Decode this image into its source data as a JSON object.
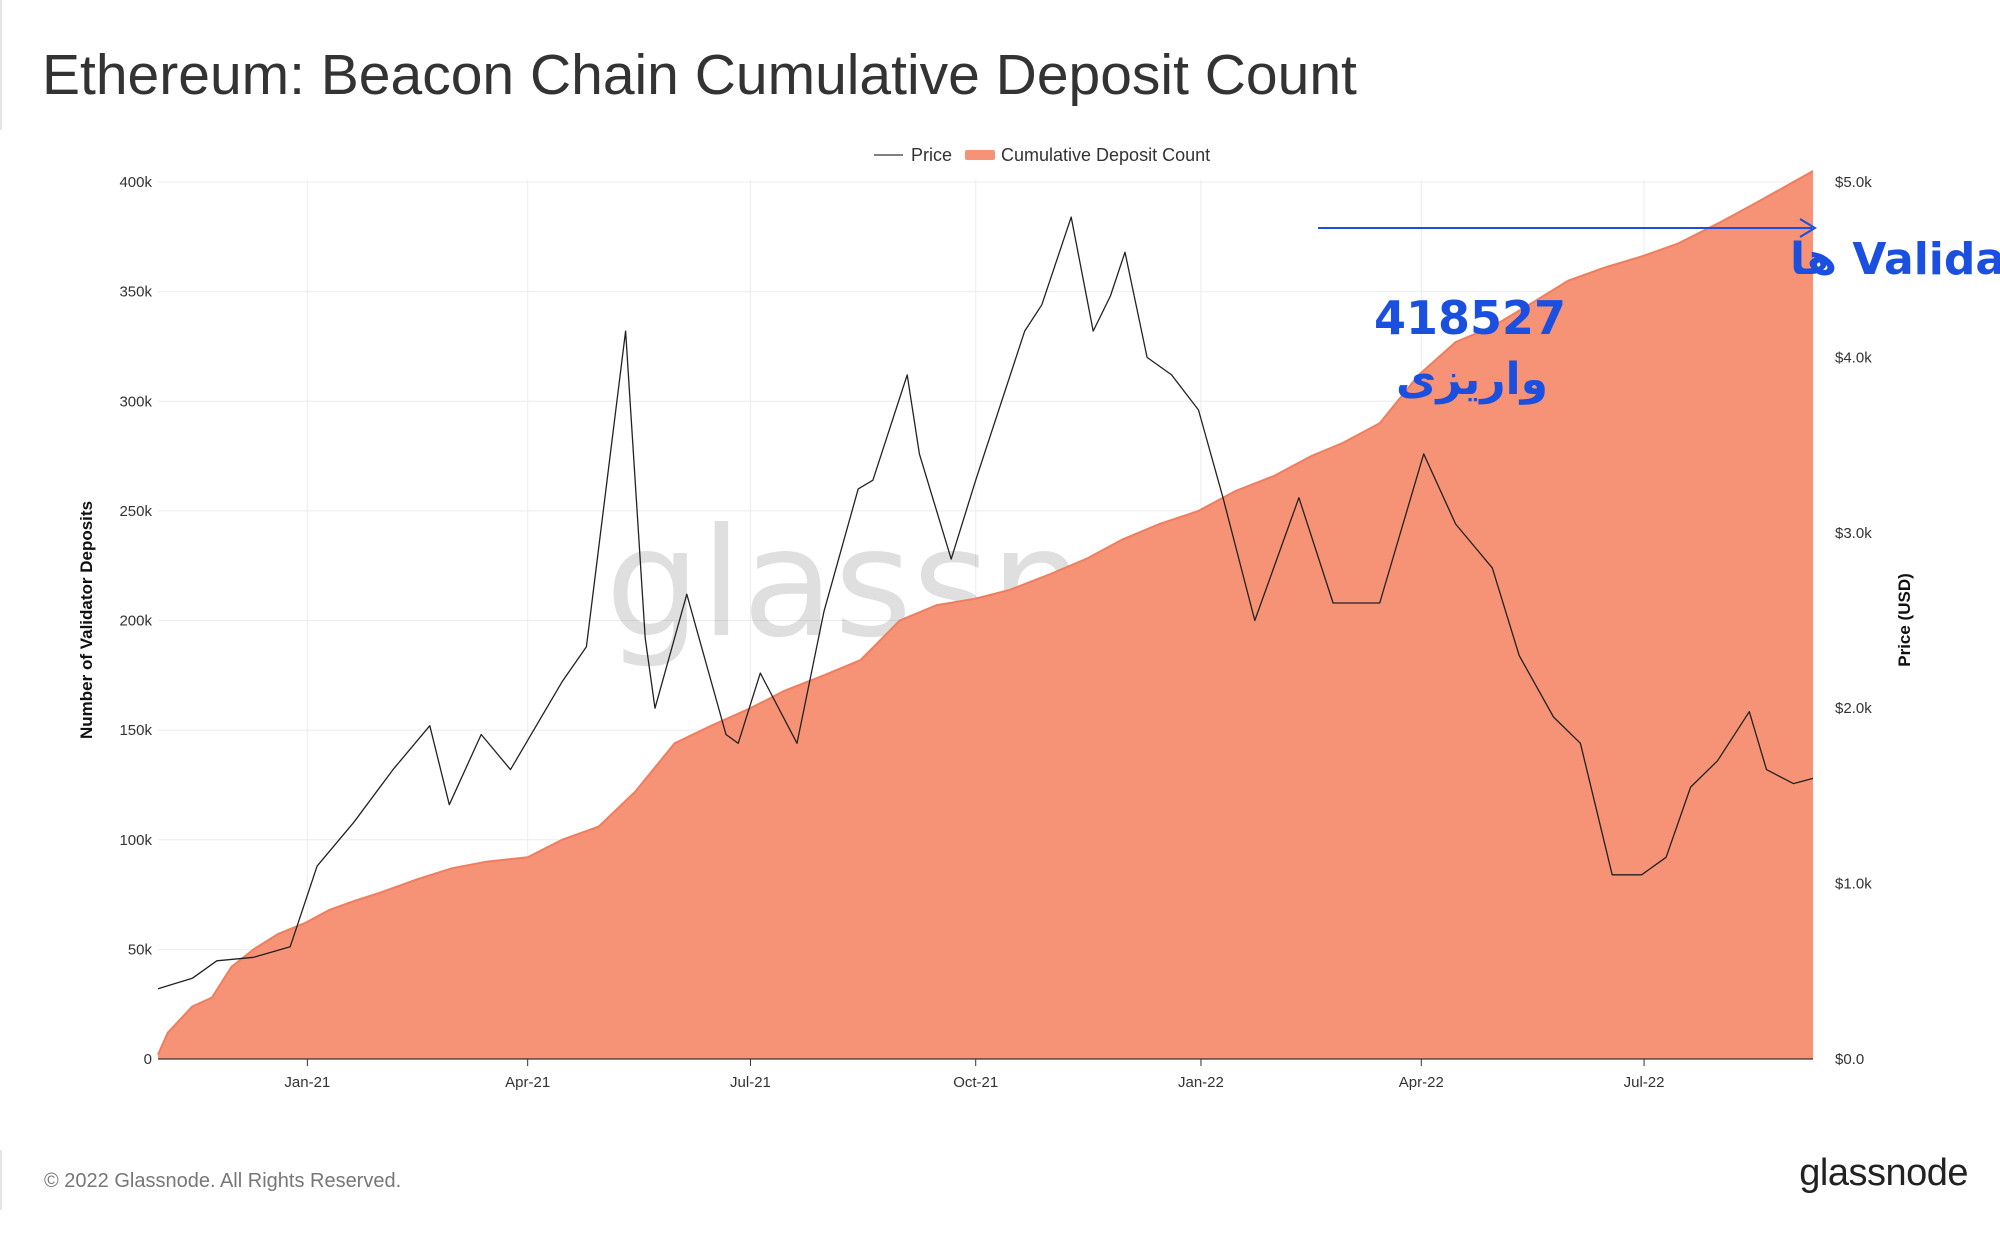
{
  "page": {
    "title": "Ethereum: Beacon Chain Cumulative Deposit Count",
    "copyright": "© 2022 Glassnode. All Rights Reserved.",
    "logo": "glassnode",
    "watermark": "glassnode"
  },
  "colors": {
    "area": "#f69275",
    "area_edge": "#ef7e5f",
    "price_line": "#222222",
    "annotation": "#1a4fe0",
    "grid": "#ececec"
  },
  "chart_data": {
    "type": "area",
    "legend": [
      "Price",
      "Cumulative Deposit Count"
    ],
    "legend_position": "top-center",
    "grid": true,
    "ylabel_left": "Number of Validator Deposits",
    "ylabel_right": "Price (USD)",
    "left_ticks": [
      "0",
      "50k",
      "100k",
      "150k",
      "200k",
      "250k",
      "300k",
      "350k",
      "400k"
    ],
    "right_ticks": [
      "$0.0",
      "$1.0k",
      "$2.0k",
      "$3.0k",
      "$4.0k",
      "$5.0k"
    ],
    "x_ticks": [
      "Jan-21",
      "Apr-21",
      "Jul-21",
      "Oct-21",
      "Jan-22",
      "Apr-22",
      "Jul-22"
    ],
    "x_tick_dates": [
      "2021-01-01",
      "2021-04-01",
      "2021-07-01",
      "2021-10-01",
      "2022-01-01",
      "2022-04-01",
      "2022-07-01"
    ],
    "left_ylim": [
      0,
      400000
    ],
    "right_ylim": [
      0,
      5000
    ],
    "xlim": [
      "2020-11-01",
      "2022-09-08"
    ],
    "series": [
      {
        "name": "Cumulative Deposit Count",
        "axis": "left",
        "x": [
          "2020-11-01",
          "2020-11-05",
          "2020-11-15",
          "2020-11-23",
          "2020-12-01",
          "2020-12-10",
          "2020-12-20",
          "2020-12-31",
          "2021-01-10",
          "2021-01-20",
          "2021-01-31",
          "2021-02-15",
          "2021-03-01",
          "2021-03-15",
          "2021-04-01",
          "2021-04-15",
          "2021-04-30",
          "2021-05-15",
          "2021-05-31",
          "2021-06-15",
          "2021-07-01",
          "2021-07-15",
          "2021-07-31",
          "2021-08-15",
          "2021-08-31",
          "2021-09-15",
          "2021-10-01",
          "2021-10-15",
          "2021-10-31",
          "2021-11-15",
          "2021-11-30",
          "2021-12-15",
          "2021-12-31",
          "2022-01-15",
          "2022-01-31",
          "2022-02-15",
          "2022-02-28",
          "2022-03-15",
          "2022-03-31",
          "2022-04-15",
          "2022-04-30",
          "2022-05-15",
          "2022-05-31",
          "2022-06-15",
          "2022-06-30",
          "2022-07-15",
          "2022-07-31",
          "2022-08-15",
          "2022-08-31",
          "2022-09-08"
        ],
        "y": [
          2000,
          12000,
          24000,
          28000,
          42000,
          50000,
          57000,
          62000,
          68000,
          72000,
          76000,
          82000,
          87000,
          90000,
          92000,
          100000,
          106000,
          122000,
          144000,
          152000,
          160000,
          168000,
          175000,
          182000,
          200000,
          207000,
          210000,
          214000,
          221000,
          228000,
          237000,
          244000,
          250000,
          259000,
          266000,
          275000,
          281000,
          290000,
          312000,
          327000,
          334000,
          344000,
          355000,
          361000,
          366000,
          372000,
          381000,
          390000,
          400000,
          405000
        ]
      },
      {
        "name": "Price",
        "axis": "right",
        "x": [
          "2020-11-01",
          "2020-11-15",
          "2020-11-25",
          "2020-12-10",
          "2020-12-25",
          "2021-01-05",
          "2021-01-20",
          "2021-02-05",
          "2021-02-20",
          "2021-02-28",
          "2021-03-13",
          "2021-03-25",
          "2021-04-15",
          "2021-04-25",
          "2021-05-11",
          "2021-05-19",
          "2021-05-23",
          "2021-06-05",
          "2021-06-21",
          "2021-06-26",
          "2021-07-05",
          "2021-07-20",
          "2021-07-31",
          "2021-08-14",
          "2021-08-20",
          "2021-09-03",
          "2021-09-08",
          "2021-09-21",
          "2021-10-01",
          "2021-10-21",
          "2021-10-28",
          "2021-11-09",
          "2021-11-18",
          "2021-11-25",
          "2021-12-01",
          "2021-12-10",
          "2021-12-20",
          "2021-12-31",
          "2022-01-10",
          "2022-01-23",
          "2022-02-10",
          "2022-02-24",
          "2022-03-15",
          "2022-04-02",
          "2022-04-15",
          "2022-04-30",
          "2022-05-11",
          "2022-05-25",
          "2022-06-05",
          "2022-06-18",
          "2022-06-30",
          "2022-07-10",
          "2022-07-20",
          "2022-07-31",
          "2022-08-13",
          "2022-08-20",
          "2022-08-31",
          "2022-09-08"
        ],
        "y": [
          400,
          460,
          560,
          580,
          640,
          1100,
          1350,
          1650,
          1900,
          1450,
          1850,
          1650,
          2150,
          2350,
          4150,
          2400,
          2000,
          2650,
          1850,
          1800,
          2200,
          1800,
          2550,
          3250,
          3300,
          3900,
          3450,
          2850,
          3300,
          4150,
          4300,
          4800,
          4150,
          4350,
          4600,
          4000,
          3900,
          3700,
          3200,
          2500,
          3200,
          2600,
          2600,
          3450,
          3050,
          2800,
          2300,
          1950,
          1800,
          1050,
          1050,
          1150,
          1550,
          1700,
          1980,
          1650,
          1570,
          1600
        ]
      }
    ]
  },
  "annotation": {
    "line1": "تعداد واریزی های Validator ها",
    "line2": "418527",
    "line3": "واریزی"
  }
}
